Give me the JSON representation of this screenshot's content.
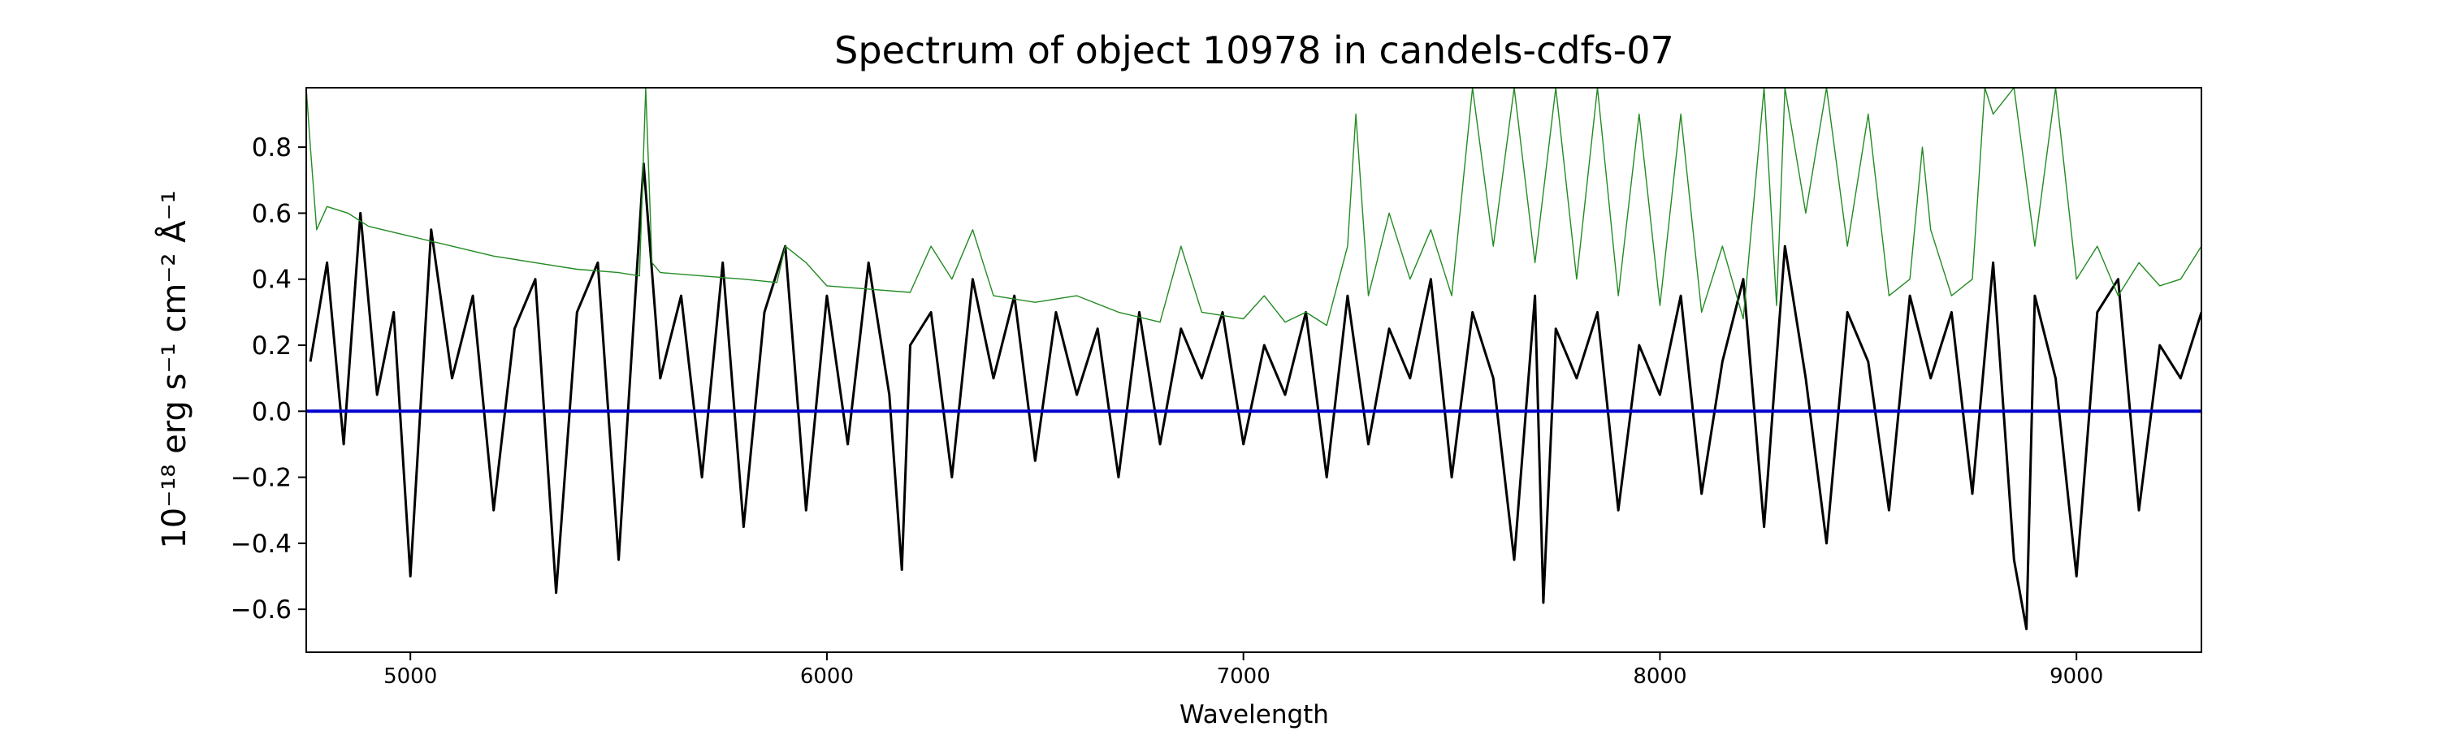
{
  "chart_data": {
    "type": "line",
    "title": "Spectrum of object 10978 in candels-cdfs-07",
    "xlabel": "Wavelength",
    "ylabel": "10⁻¹⁸ erg s⁻¹ cm⁻² Å⁻¹",
    "xlim": [
      4750,
      9300
    ],
    "ylim": [
      -0.73,
      0.98
    ],
    "x_ticks": [
      5000,
      6000,
      7000,
      8000,
      9000
    ],
    "y_ticks": [
      -0.6,
      -0.4,
      -0.2,
      0.0,
      0.2,
      0.4,
      0.6,
      0.8
    ],
    "x_tick_labels": [
      "5000",
      "6000",
      "7000",
      "8000",
      "9000"
    ],
    "y_tick_labels": [
      "−0.6",
      "−0.4",
      "−0.2",
      "0.0",
      "0.2",
      "0.4",
      "0.6",
      "0.8"
    ],
    "grid": false,
    "legend": "none",
    "series": [
      {
        "color": "#000000",
        "stroke": "thick",
        "x": [
          4760,
          4800,
          4840,
          4880,
          4920,
          4960,
          5000,
          5050,
          5100,
          5150,
          5200,
          5250,
          5300,
          5350,
          5400,
          5450,
          5500,
          5560,
          5600,
          5650,
          5700,
          5750,
          5800,
          5850,
          5900,
          5950,
          6000,
          6050,
          6100,
          6150,
          6180,
          6200,
          6250,
          6300,
          6350,
          6400,
          6450,
          6500,
          6550,
          6600,
          6650,
          6700,
          6750,
          6800,
          6850,
          6900,
          6950,
          7000,
          7050,
          7100,
          7150,
          7200,
          7250,
          7300,
          7350,
          7400,
          7450,
          7500,
          7550,
          7600,
          7650,
          7700,
          7720,
          7750,
          7800,
          7850,
          7900,
          7950,
          8000,
          8050,
          8100,
          8150,
          8200,
          8250,
          8300,
          8350,
          8400,
          8450,
          8500,
          8550,
          8600,
          8650,
          8700,
          8750,
          8800,
          8850,
          8880,
          8900,
          8950,
          9000,
          9050,
          9100,
          9150,
          9200,
          9250,
          9300
        ],
        "y": [
          0.15,
          0.45,
          -0.1,
          0.6,
          0.05,
          0.3,
          -0.5,
          0.55,
          0.1,
          0.35,
          -0.3,
          0.25,
          0.4,
          -0.55,
          0.3,
          0.45,
          -0.45,
          0.75,
          0.1,
          0.35,
          -0.2,
          0.45,
          -0.35,
          0.3,
          0.5,
          -0.3,
          0.35,
          -0.1,
          0.45,
          0.05,
          -0.48,
          0.2,
          0.3,
          -0.2,
          0.4,
          0.1,
          0.35,
          -0.15,
          0.3,
          0.05,
          0.25,
          -0.2,
          0.3,
          -0.1,
          0.25,
          0.1,
          0.3,
          -0.1,
          0.2,
          0.05,
          0.3,
          -0.2,
          0.35,
          -0.1,
          0.25,
          0.1,
          0.4,
          -0.2,
          0.3,
          0.1,
          -0.45,
          0.35,
          -0.58,
          0.25,
          0.1,
          0.3,
          -0.3,
          0.2,
          0.05,
          0.35,
          -0.25,
          0.15,
          0.4,
          -0.35,
          0.5,
          0.1,
          -0.4,
          0.3,
          0.15,
          -0.3,
          0.35,
          0.1,
          0.3,
          -0.25,
          0.45,
          -0.45,
          -0.66,
          0.35,
          0.1,
          -0.5,
          0.3,
          0.4,
          -0.3,
          0.2,
          0.1,
          0.3
        ]
      },
      {
        "color": "#228b22",
        "stroke": "thin",
        "x": [
          4750,
          4760,
          4775,
          4800,
          4850,
          4900,
          5000,
          5100,
          5200,
          5300,
          5400,
          5500,
          5550,
          5565,
          5580,
          5600,
          5700,
          5800,
          5880,
          5900,
          5950,
          6000,
          6100,
          6200,
          6250,
          6300,
          6350,
          6400,
          6500,
          6600,
          6700,
          6800,
          6850,
          6900,
          7000,
          7050,
          7100,
          7150,
          7200,
          7250,
          7270,
          7300,
          7350,
          7400,
          7450,
          7500,
          7550,
          7600,
          7650,
          7700,
          7750,
          7800,
          7850,
          7900,
          7950,
          8000,
          8050,
          8100,
          8150,
          8200,
          8250,
          8280,
          8300,
          8350,
          8400,
          8450,
          8500,
          8550,
          8600,
          8630,
          8650,
          8700,
          8750,
          8780,
          8800,
          8850,
          8900,
          8950,
          9000,
          9050,
          9100,
          9150,
          9200,
          9250,
          9300
        ],
        "y": [
          0.98,
          0.8,
          0.55,
          0.62,
          0.6,
          0.56,
          0.53,
          0.5,
          0.47,
          0.45,
          0.43,
          0.42,
          0.41,
          0.98,
          0.45,
          0.42,
          0.41,
          0.4,
          0.39,
          0.5,
          0.45,
          0.38,
          0.37,
          0.36,
          0.5,
          0.4,
          0.55,
          0.35,
          0.33,
          0.35,
          0.3,
          0.27,
          0.5,
          0.3,
          0.28,
          0.35,
          0.27,
          0.3,
          0.26,
          0.5,
          0.9,
          0.35,
          0.6,
          0.4,
          0.55,
          0.35,
          0.98,
          0.5,
          0.98,
          0.45,
          0.98,
          0.4,
          0.98,
          0.35,
          0.9,
          0.32,
          0.9,
          0.3,
          0.5,
          0.28,
          0.98,
          0.32,
          0.98,
          0.6,
          0.98,
          0.5,
          0.9,
          0.35,
          0.4,
          0.8,
          0.55,
          0.35,
          0.4,
          0.98,
          0.9,
          0.98,
          0.5,
          0.98,
          0.4,
          0.5,
          0.35,
          0.45,
          0.38,
          0.4,
          0.5
        ]
      },
      {
        "color": "#0000cd",
        "stroke": "medium",
        "x": [
          4750,
          9300
        ],
        "y": [
          0.0,
          0.0
        ]
      }
    ]
  }
}
